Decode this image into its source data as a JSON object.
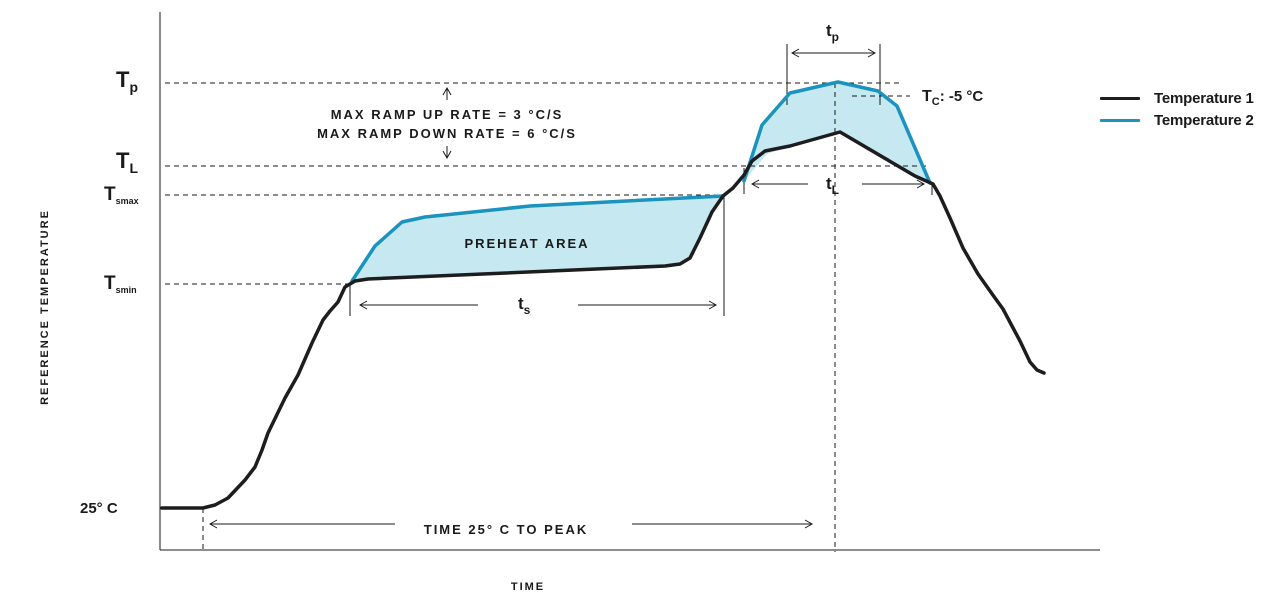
{
  "chart_data": {
    "type": "line",
    "xlabel": "TIME",
    "ylabel": "REFERENCE TEMPERATURE",
    "legend_position": "top-right",
    "y_levels": [
      {
        "key": "tp",
        "main": "T",
        "sub": "p"
      },
      {
        "key": "tl",
        "main": "T",
        "sub": "L"
      },
      {
        "key": "tsmax",
        "main": "T",
        "sub": "smax"
      },
      {
        "key": "tsmin",
        "main": "T",
        "sub": "smin"
      },
      {
        "key": "ambient",
        "main": "25° C",
        "sub": ""
      }
    ],
    "annotations": {
      "ramp_up": "MAX RAMP UP RATE = 3 °C/S",
      "ramp_down": "MAX RAMP DOWN RATE = 6 °C/S",
      "preheat": "PREHEAT AREA",
      "ts_main": "t",
      "ts_sub": "s",
      "tl_main": "t",
      "tl_sub": "L",
      "tp_main": "t",
      "tp_sub": "p",
      "tc_main": "T",
      "tc_sub": "C",
      "tc_rest": ": -5 °C",
      "time_to_peak": "TIME 25° C TO PEAK"
    },
    "series": [
      {
        "name": "Temperature 1",
        "color": "#1d1d1f"
      },
      {
        "name": "Temperature 2",
        "color": "#1a93bf"
      }
    ],
    "fill_color": "#c5e8f1"
  }
}
